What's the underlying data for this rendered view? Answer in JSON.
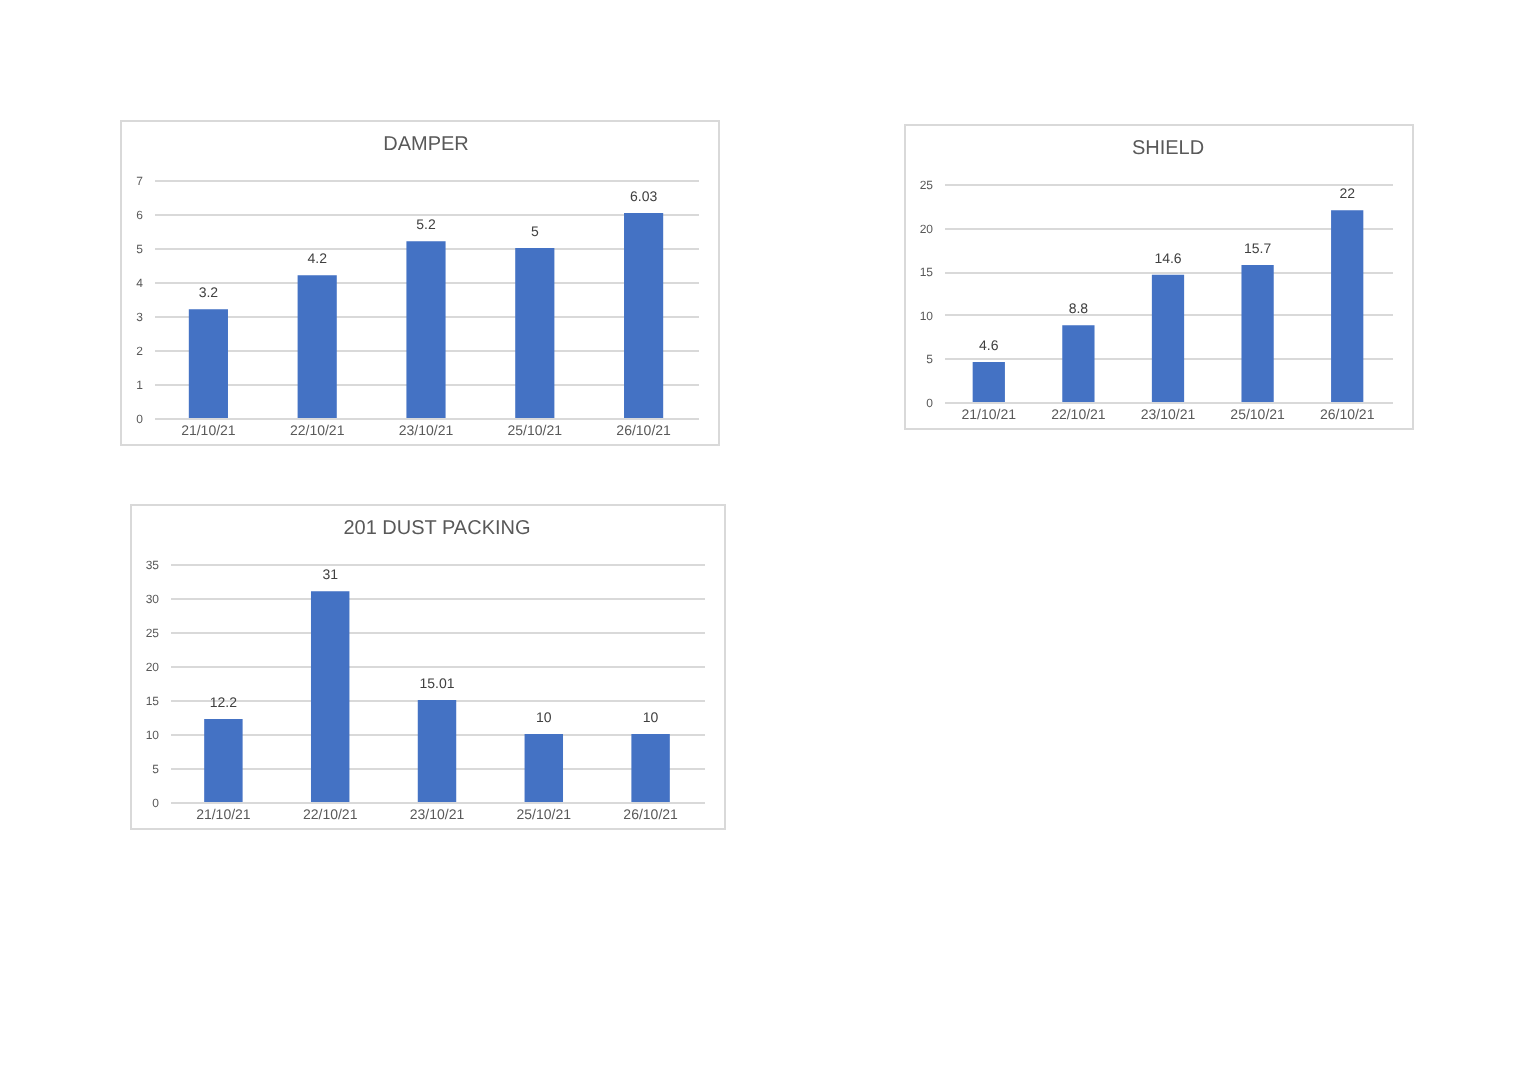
{
  "chart_data": [
    {
      "type": "bar",
      "title": "DAMPER",
      "categories": [
        "21/10/21",
        "22/10/21",
        "23/10/21",
        "25/10/21",
        "26/10/21"
      ],
      "values": [
        3.2,
        4.2,
        5.2,
        5,
        6.03
      ],
      "color": "#4472c4",
      "ylim": [
        0,
        7
      ],
      "yticks": [
        0,
        1,
        2,
        3,
        4,
        5,
        6,
        7
      ],
      "grid": "y",
      "data_labels": true
    },
    {
      "type": "bar",
      "title": "SHIELD",
      "categories": [
        "21/10/21",
        "22/10/21",
        "23/10/21",
        "25/10/21",
        "26/10/21"
      ],
      "values": [
        4.6,
        8.8,
        14.6,
        15.7,
        22
      ],
      "color": "#4472c4",
      "ylim": [
        0,
        25
      ],
      "yticks": [
        0,
        5,
        10,
        15,
        20,
        25
      ],
      "grid": "y",
      "data_labels": true
    },
    {
      "type": "bar",
      "title": "201 DUST PACKING",
      "categories": [
        "21/10/21",
        "22/10/21",
        "23/10/21",
        "25/10/21",
        "26/10/21"
      ],
      "values": [
        12.2,
        31,
        15.01,
        10,
        10
      ],
      "color": "#4472c4",
      "ylim": [
        0,
        35
      ],
      "yticks": [
        0,
        5,
        10,
        15,
        20,
        25,
        30,
        35
      ],
      "grid": "y",
      "data_labels": true
    }
  ]
}
